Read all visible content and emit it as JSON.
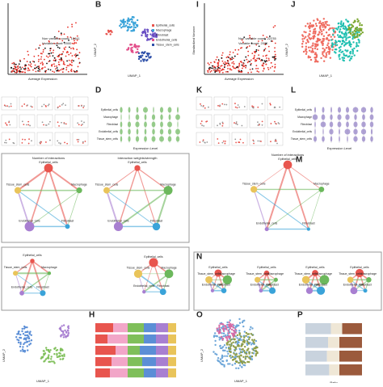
{
  "letters": {
    "B": "B",
    "D": "D",
    "H": "H",
    "I": "I",
    "J": "J",
    "K": "K",
    "L": "L",
    "M": "M",
    "N": "N",
    "O": "O",
    "P": "P"
  },
  "scatter_A": {
    "legend": [
      "Non variable count: 18441",
      "Variable count: 2000"
    ],
    "xlabel": "Average Expression"
  },
  "scatter_I": {
    "legend": [
      "Non variable count: 22235",
      "Variable count: 2000"
    ],
    "xlabel": "Average Expression",
    "ylabel": "Standardized Variance"
  },
  "umap": {
    "x": "UMAP_1",
    "y": "UMAP_2"
  },
  "cell_types": [
    "Epithelial_cells",
    "Macrophage",
    "Fibroblast",
    "Endothelial_cells",
    "Tissue_stem_cells"
  ],
  "network_titles": [
    "Number of interactions",
    "Interaction weights/strength"
  ],
  "expression_label": "Expression Level",
  "ratio_label": "Ratio",
  "H": {
    "values": [
      [
        22,
        18,
        20,
        15,
        15,
        10
      ],
      [
        15,
        25,
        20,
        15,
        15,
        10
      ],
      [
        25,
        15,
        15,
        20,
        15,
        10
      ],
      [
        20,
        20,
        18,
        17,
        15,
        10
      ],
      [
        18,
        22,
        20,
        15,
        15,
        10
      ]
    ],
    "colors": [
      "#e8554e",
      "#f2a6c8",
      "#7fbf5a",
      "#5b8ed6",
      "#a87fd1",
      "#e9c45a"
    ]
  },
  "P": {
    "values": [
      [
        45,
        20,
        35
      ],
      [
        40,
        20,
        40
      ],
      [
        38,
        22,
        40
      ],
      [
        42,
        18,
        40
      ]
    ],
    "colors": [
      "#c9d3de",
      "#efe7d6",
      "#9b5a3c"
    ]
  }
}
